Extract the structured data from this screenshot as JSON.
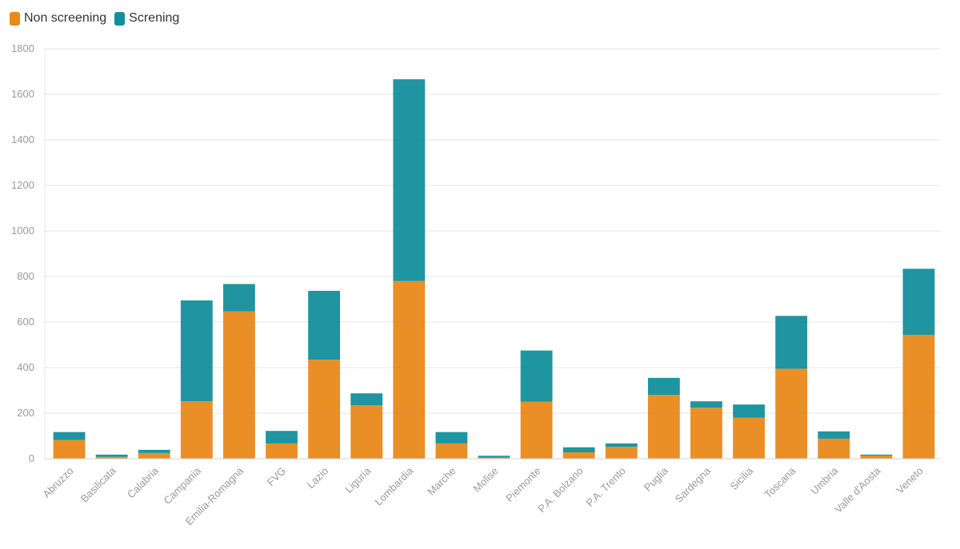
{
  "chart_data": {
    "type": "bar",
    "stacked": true,
    "categories": [
      "Abruzzo",
      "Basilicata",
      "Calabria",
      "Campania",
      "Emilia-Romagna",
      "FVG",
      "Lazio",
      "Liguria",
      "Lombardia",
      "Marche",
      "Molise",
      "Piemonte",
      "P.A. Bolzano",
      "P.A. Trento",
      "Puglia",
      "Sardegna",
      "Sicilia",
      "Toscana",
      "Umbria",
      "Valle d'Aosta",
      "Veneto"
    ],
    "series": [
      {
        "name": "Non screening",
        "color": "#E8891A",
        "values": [
          82,
          8,
          25,
          252,
          647,
          67,
          435,
          235,
          780,
          67,
          5,
          250,
          28,
          52,
          280,
          224,
          180,
          395,
          88,
          14,
          544
        ]
      },
      {
        "name": "Screning",
        "color": "#128F9C",
        "values": [
          35,
          10,
          14,
          443,
          120,
          55,
          302,
          52,
          886,
          50,
          8,
          225,
          22,
          15,
          75,
          28,
          58,
          232,
          32,
          4,
          290
        ]
      }
    ],
    "title": "",
    "xlabel": "",
    "ylabel": "",
    "ylim": [
      0,
      1800
    ],
    "yticks": [
      "0",
      "200",
      "400",
      "600",
      "800",
      "1000",
      "1200",
      "1400",
      "1600",
      "1800"
    ],
    "grid": true,
    "legend_position": "top-left"
  }
}
